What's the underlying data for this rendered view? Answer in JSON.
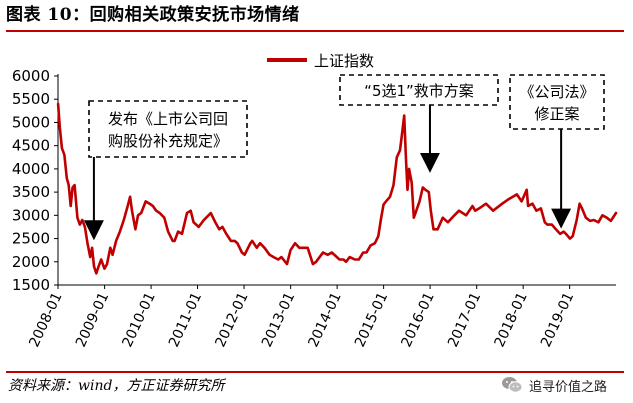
{
  "title": "图表 10：回购相关政策安抚市场情绪",
  "source": "资料来源：wind，方正证券研究所",
  "watermark": "追寻价值之路",
  "watermark_icon": "wechat-icon",
  "colors": {
    "line": "#c00000",
    "rule": "#c00000",
    "box_border": "#000000"
  },
  "chart_data": {
    "type": "line",
    "title": "",
    "xlabel": "",
    "ylabel": "",
    "ylim": [
      1500,
      6000
    ],
    "yticks": [
      "1500",
      "2000",
      "2500",
      "3000",
      "3500",
      "4000",
      "4500",
      "5000",
      "5500",
      "6000"
    ],
    "xticks": [
      "2008-01",
      "2009-01",
      "2010-01",
      "2011-01",
      "2012-01",
      "2013-01",
      "2014-01",
      "2015-01",
      "2016-01",
      "2017-01",
      "2018-01",
      "2019-01"
    ],
    "xlim": [
      "2008-01-01",
      "2019-12-31"
    ],
    "grid": false,
    "legend": {
      "position": "top-center",
      "label": "上证指数"
    },
    "series": [
      {
        "name": "上证指数",
        "color": "#c00000",
        "x": [
          "2008-01-02",
          "2008-01-15",
          "2008-02-01",
          "2008-02-20",
          "2008-03-10",
          "2008-03-25",
          "2008-04-10",
          "2008-04-25",
          "2008-05-10",
          "2008-06-01",
          "2008-06-20",
          "2008-07-10",
          "2008-07-30",
          "2008-08-20",
          "2008-09-10",
          "2008-09-25",
          "2008-10-10",
          "2008-10-28",
          "2008-11-15",
          "2008-12-05",
          "2008-12-30",
          "2009-01-20",
          "2009-02-15",
          "2009-03-05",
          "2009-04-01",
          "2009-05-01",
          "2009-06-01",
          "2009-07-01",
          "2009-07-20",
          "2009-08-04",
          "2009-08-31",
          "2009-09-20",
          "2009-10-15",
          "2009-11-20",
          "2009-12-20",
          "2010-01-15",
          "2010-02-10",
          "2010-03-10",
          "2010-04-15",
          "2010-05-15",
          "2010-06-20",
          "2010-07-05",
          "2010-08-01",
          "2010-09-01",
          "2010-10-10",
          "2010-11-08",
          "2010-12-01",
          "2011-01-10",
          "2011-02-20",
          "2011-04-15",
          "2011-05-20",
          "2011-06-20",
          "2011-07-15",
          "2011-08-15",
          "2011-09-20",
          "2011-10-20",
          "2011-11-10",
          "2011-12-15",
          "2012-01-05",
          "2012-02-20",
          "2012-03-05",
          "2012-04-10",
          "2012-05-05",
          "2012-06-10",
          "2012-07-20",
          "2012-08-20",
          "2012-09-25",
          "2012-10-20",
          "2012-12-03",
          "2012-12-31",
          "2013-02-05",
          "2013-03-10",
          "2013-05-15",
          "2013-06-25",
          "2013-07-20",
          "2013-09-12",
          "2013-10-20",
          "2013-11-20",
          "2013-12-30",
          "2014-01-20",
          "2014-02-20",
          "2014-03-12",
          "2014-04-10",
          "2014-05-20",
          "2014-06-20",
          "2014-07-25",
          "2014-08-20",
          "2014-09-20",
          "2014-10-25",
          "2014-11-20",
          "2014-12-10",
          "2014-12-31",
          "2015-01-20",
          "2015-02-20",
          "2015-03-20",
          "2015-04-15",
          "2015-05-10",
          "2015-05-28",
          "2015-06-12",
          "2015-06-26",
          "2015-07-08",
          "2015-07-20",
          "2015-08-10",
          "2015-08-26",
          "2015-09-15",
          "2015-10-10",
          "2015-11-05",
          "2015-11-25",
          "2015-12-22",
          "2016-01-07",
          "2016-01-28",
          "2016-02-29",
          "2016-04-10",
          "2016-05-20",
          "2016-07-10",
          "2016-08-15",
          "2016-10-10",
          "2016-11-29",
          "2016-12-20",
          "2017-01-20",
          "2017-03-15",
          "2017-05-10",
          "2017-07-20",
          "2017-09-10",
          "2017-11-13",
          "2017-12-20",
          "2018-01-29",
          "2018-02-09",
          "2018-03-15",
          "2018-04-15",
          "2018-05-20",
          "2018-06-20",
          "2018-07-10",
          "2018-08-15",
          "2018-09-15",
          "2018-10-18",
          "2018-11-15",
          "2018-12-10",
          "2019-01-03",
          "2019-01-25",
          "2019-02-25",
          "2019-03-20",
          "2019-04-08",
          "2019-05-09",
          "2019-06-10",
          "2019-07-10",
          "2019-08-15",
          "2019-09-15",
          "2019-10-20",
          "2019-11-20",
          "2019-12-31"
        ],
        "values": [
          5400,
          4900,
          4450,
          4300,
          3800,
          3650,
          3200,
          3600,
          3650,
          2950,
          2800,
          2900,
          2750,
          2400,
          2100,
          2300,
          1900,
          1750,
          1900,
          2050,
          1850,
          1950,
          2300,
          2150,
          2450,
          2650,
          2900,
          3200,
          3400,
          3100,
          2700,
          3000,
          3050,
          3300,
          3250,
          3200,
          3100,
          3050,
          2950,
          2650,
          2450,
          2450,
          2650,
          2600,
          3050,
          3100,
          2850,
          2750,
          2900,
          3050,
          2850,
          2700,
          2750,
          2600,
          2450,
          2450,
          2400,
          2200,
          2150,
          2400,
          2450,
          2300,
          2400,
          2300,
          2150,
          2100,
          2050,
          2100,
          1950,
          2250,
          2400,
          2300,
          2300,
          1950,
          2000,
          2200,
          2150,
          2200,
          2100,
          2050,
          2050,
          2000,
          2100,
          2050,
          2050,
          2200,
          2200,
          2350,
          2400,
          2550,
          2900,
          3230,
          3300,
          3400,
          3650,
          4250,
          4400,
          4800,
          5150,
          4200,
          3550,
          4000,
          3700,
          2950,
          3100,
          3300,
          3600,
          3550,
          3500,
          3100,
          2700,
          2700,
          2950,
          2850,
          3000,
          3100,
          3000,
          3200,
          3100,
          3150,
          3250,
          3100,
          3250,
          3350,
          3450,
          3300,
          3550,
          3200,
          3250,
          3100,
          3150,
          2850,
          2800,
          2800,
          2700,
          2600,
          2650,
          2580,
          2500,
          2550,
          2900,
          3250,
          3150,
          2950,
          2880,
          2900,
          2850,
          3000,
          2950,
          2880,
          3050
        ]
      }
    ],
    "annotations": [
      {
        "lines": [
          "发布《上市公司回",
          "购股份补充规定》"
        ],
        "target_x": "2008-10-09",
        "target_y": 2550
      },
      {
        "lines": [
          "“5选1”救市方案"
        ],
        "target_x": "2015-12-31",
        "target_y": 4000
      },
      {
        "lines": [
          "《公司法》",
          "修正案"
        ],
        "target_x": "2018-10-26",
        "target_y": 2800
      }
    ]
  }
}
